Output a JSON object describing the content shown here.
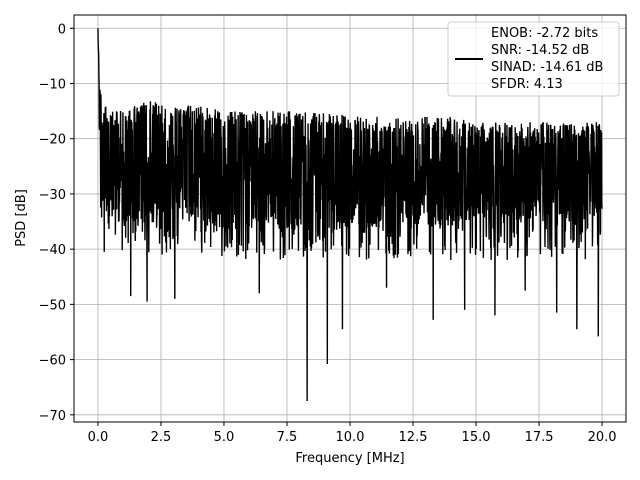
{
  "chart_data": {
    "type": "line",
    "title": "",
    "xlabel": "Frequency [MHz]",
    "ylabel": "PSD [dB]",
    "xlim": [
      -0.95,
      20.95
    ],
    "ylim": [
      -71.3,
      2.4
    ],
    "xticks": [
      0.0,
      2.5,
      5.0,
      7.5,
      10.0,
      12.5,
      15.0,
      17.5,
      20.0
    ],
    "xtick_labels": [
      "0.0",
      "2.5",
      "5.0",
      "7.5",
      "10.0",
      "12.5",
      "15.0",
      "17.5",
      "20.0"
    ],
    "yticks": [
      0,
      -10,
      -20,
      -30,
      -40,
      -50,
      -60,
      -70
    ],
    "ytick_labels": [
      "0",
      "−10",
      "−20",
      "−30",
      "−40",
      "−50",
      "−60",
      "−70"
    ],
    "grid": true,
    "legend_position": "top-right",
    "series": [
      {
        "name": "",
        "color": "#000000",
        "x": [
          0.0,
          0.05,
          0.1,
          0.2,
          0.4,
          0.7,
          1.0,
          1.5,
          2.0,
          3.0,
          4.0,
          5.0,
          6.0,
          7.0,
          8.0,
          9.0,
          10.0,
          11.0,
          12.0,
          13.0,
          14.0,
          15.0,
          16.0,
          17.0,
          18.0,
          19.0,
          20.0
        ],
        "upper_envelope_db": [
          0,
          -5,
          -10,
          -13,
          -15,
          -15,
          -14,
          -14,
          -13,
          -14,
          -14,
          -15,
          -15,
          -15,
          -15,
          -15,
          -16,
          -16,
          -16,
          -16,
          -16,
          -17,
          -17,
          -17,
          -17,
          -17,
          -17
        ],
        "median_db": [
          0,
          -12,
          -18,
          -22,
          -24,
          -25,
          -25,
          -25,
          -25,
          -25,
          -25,
          -26,
          -26,
          -26,
          -26,
          -26,
          -26,
          -26,
          -26,
          -26,
          -26,
          -26,
          -26,
          -26,
          -26,
          -26,
          -26
        ],
        "deep_nulls": [
          {
            "x": 0.25,
            "y": -40.5
          },
          {
            "x": 1.3,
            "y": -48.5
          },
          {
            "x": 1.95,
            "y": -49.5
          },
          {
            "x": 3.05,
            "y": -49.0
          },
          {
            "x": 6.4,
            "y": -48.0
          },
          {
            "x": 8.3,
            "y": -67.5
          },
          {
            "x": 9.1,
            "y": -60.8
          },
          {
            "x": 9.7,
            "y": -54.5
          },
          {
            "x": 11.45,
            "y": -47.0
          },
          {
            "x": 13.3,
            "y": -52.8
          },
          {
            "x": 14.55,
            "y": -51.0
          },
          {
            "x": 15.75,
            "y": -52.0
          },
          {
            "x": 16.95,
            "y": -47.5
          },
          {
            "x": 18.2,
            "y": -51.5
          },
          {
            "x": 19.0,
            "y": -54.5
          },
          {
            "x": 19.85,
            "y": -55.8
          }
        ]
      }
    ]
  },
  "legend": {
    "lines": [
      "ENOB: -2.72 bits",
      "SNR: -14.52 dB",
      "SINAD: -14.61 dB",
      "SFDR: 4.13"
    ]
  }
}
